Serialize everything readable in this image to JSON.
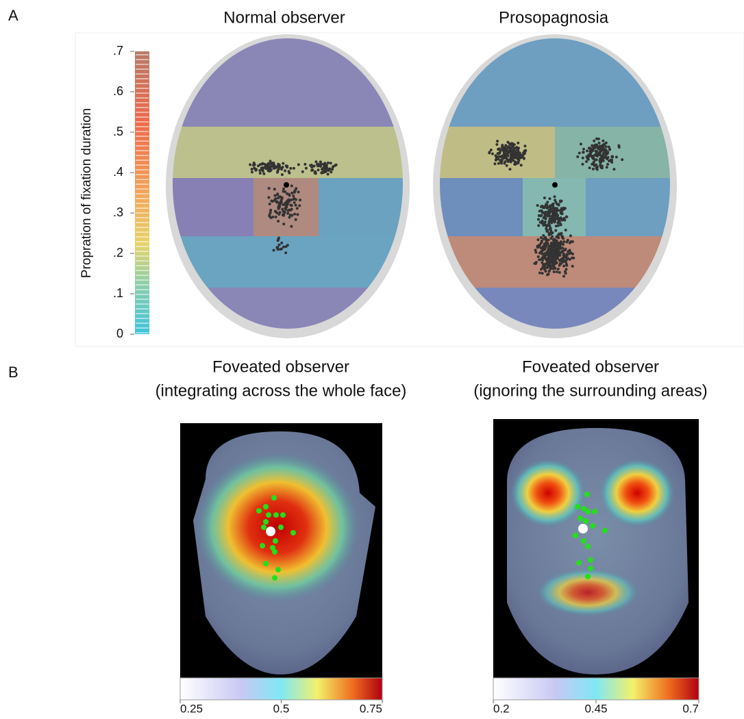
{
  "panel_a": {
    "label": "A",
    "faces": [
      {
        "title": "Normal observer"
      },
      {
        "title": "Prosopagnosia"
      }
    ],
    "colorbar": {
      "label": "Propration of fixation duration",
      "lim": [
        0,
        0.7
      ],
      "ticks": [
        {
          "value": 0,
          "label": "0"
        },
        {
          "value": 0.1,
          "label": ".1"
        },
        {
          "value": 0.2,
          "label": ".2"
        },
        {
          "value": 0.3,
          "label": ".3"
        },
        {
          "value": 0.4,
          "label": ".4"
        },
        {
          "value": 0.5,
          "label": ".5"
        },
        {
          "value": 0.6,
          "label": ".6"
        },
        {
          "value": 0.7,
          "label": ".7"
        }
      ]
    }
  },
  "panel_b": {
    "label": "B",
    "maps": [
      {
        "title": [
          "Foveated observer",
          "(integrating across the whole face)"
        ],
        "lim": [
          0.25,
          0.75
        ],
        "ticks": [
          0.25,
          0.5,
          0.75
        ]
      },
      {
        "title": [
          "Foveated observer",
          "(ignoring the surrounding areas)"
        ],
        "lim": [
          0.2,
          0.7
        ],
        "ticks": [
          0.2,
          0.45,
          0.7
        ]
      }
    ]
  }
}
